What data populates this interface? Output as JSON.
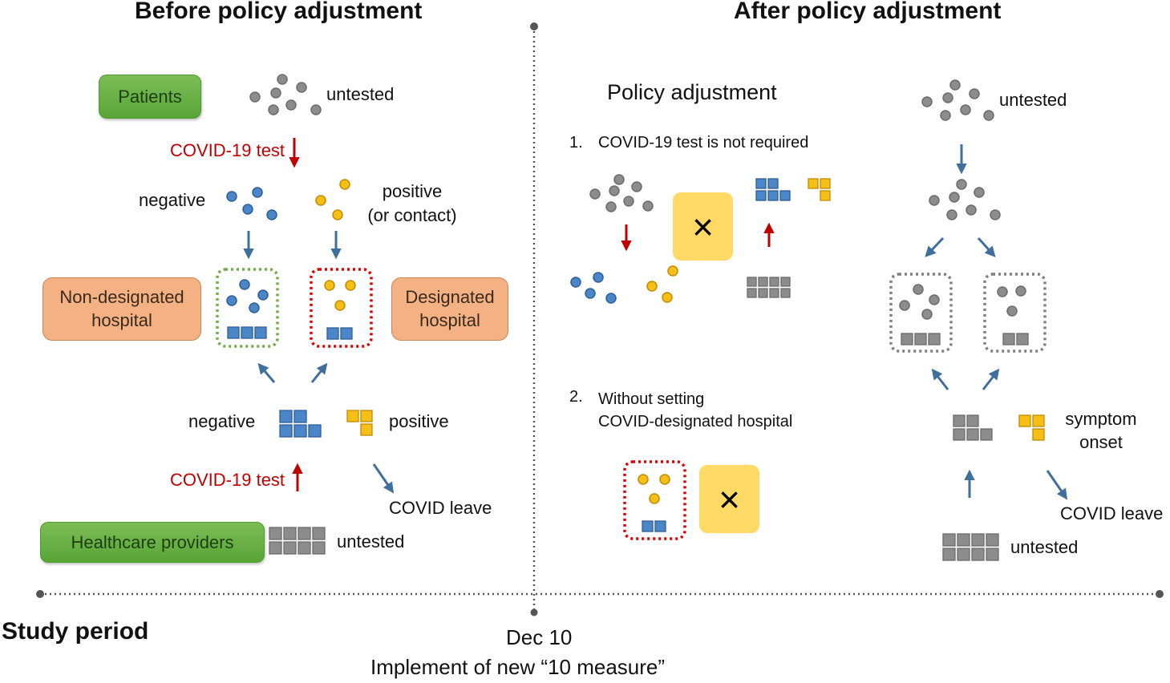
{
  "headings": {
    "before": "Before policy adjustment",
    "after": "After policy adjustment",
    "policy_adjustment": "Policy adjustment"
  },
  "before": {
    "patients_label": "Patients",
    "untested_patients": "untested",
    "covid_test_top": "COVID-19 test",
    "negative_patients": "negative",
    "positive_patients_line1": "positive",
    "positive_patients_line2": "(or contact)",
    "non_designated_line1": "Non-designated",
    "non_designated_line2": "hospital",
    "designated_line1": "Designated",
    "designated_line2": "hospital",
    "negative_staff": "negative",
    "positive_staff": "positive",
    "covid_test_bottom": "COVID-19 test",
    "covid_leave": "COVID leave",
    "healthcare_label": "Healthcare providers",
    "untested_staff": "untested"
  },
  "after": {
    "item1_num": "1.",
    "item1_text": "COVID-19 test is not required",
    "item2_num": "2.",
    "item2_line1": "Without setting",
    "item2_line2": "COVID-designated hospital",
    "cross_symbol": "×",
    "untested_patients": "untested",
    "symptom_line1": "symptom",
    "symptom_line2": "onset",
    "covid_leave": "COVID leave",
    "untested_staff": "untested"
  },
  "timeline": {
    "study_period": "Study period",
    "date": "Dec 10",
    "event": "Implement of new “10 measure”"
  },
  "colors": {
    "gray": "#8c8c8c",
    "blue": "#4a86c8",
    "yellow": "#f5bf16",
    "arrow_blue": "#3f6f9b",
    "arrow_red": "#c00000",
    "green_dotted": "#70ad47",
    "red_dotted": "#e00000",
    "gray_dotted": "#7f7f7f"
  }
}
